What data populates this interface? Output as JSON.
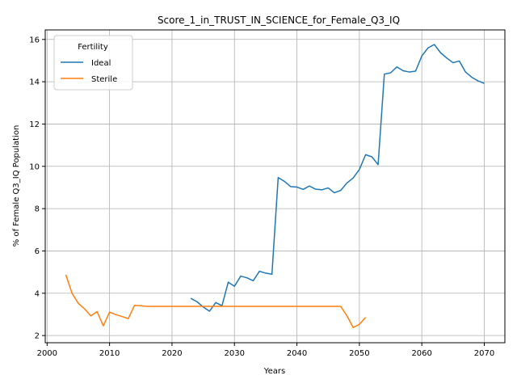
{
  "chart_data": {
    "type": "line",
    "title": "Score_1_in_TRUST_IN_SCIENCE_for_Female_Q3_IQ",
    "xlabel": "Years",
    "ylabel": "% of Female Q3_IQ Population",
    "xlim": [
      1999.7,
      2073.3
    ],
    "ylim": [
      1.66,
      16.45
    ],
    "x_ticks": [
      2000,
      2010,
      2020,
      2030,
      2040,
      2050,
      2060,
      2070
    ],
    "y_ticks": [
      2,
      4,
      6,
      8,
      10,
      12,
      14,
      16
    ],
    "grid": true,
    "legend": {
      "title": "Fertility",
      "placement": "top-left"
    },
    "series": [
      {
        "name": "Ideal",
        "color": "#1f77b4",
        "x": [
          2023,
          2024,
          2025,
          2026,
          2027,
          2028,
          2029,
          2030,
          2031,
          2032,
          2033,
          2034,
          2035,
          2036,
          2037,
          2038,
          2039,
          2040,
          2041,
          2042,
          2043,
          2044,
          2045,
          2046,
          2047,
          2048,
          2049,
          2050,
          2051,
          2052,
          2053,
          2054,
          2055,
          2056,
          2057,
          2058,
          2059,
          2060,
          2061,
          2062,
          2063,
          2064,
          2065,
          2066,
          2067,
          2068,
          2069,
          2070
        ],
        "y": [
          3.76,
          3.6,
          3.35,
          3.15,
          3.56,
          3.41,
          4.52,
          4.33,
          4.81,
          4.73,
          4.59,
          5.04,
          4.95,
          4.9,
          9.47,
          9.29,
          9.04,
          9.02,
          8.91,
          9.07,
          8.92,
          8.89,
          8.98,
          8.75,
          8.86,
          9.21,
          9.45,
          9.85,
          10.55,
          10.45,
          10.08,
          14.36,
          14.42,
          14.7,
          14.52,
          14.46,
          14.5,
          15.22,
          15.6,
          15.76,
          15.37,
          15.12,
          14.9,
          14.98,
          14.46,
          14.21,
          14.04,
          13.92
        ]
      },
      {
        "name": "Sterile",
        "color": "#ff7f0e",
        "x": [
          2003,
          2004,
          2005,
          2006,
          2007,
          2008,
          2009,
          2010,
          2011,
          2012,
          2013,
          2014,
          2015,
          2016,
          2017,
          2018,
          2019,
          2020,
          2021,
          2022,
          2023,
          2024,
          2025,
          2026,
          2027,
          2028,
          2029,
          2030,
          2031,
          2032,
          2033,
          2034,
          2035,
          2036,
          2037,
          2038,
          2039,
          2040,
          2041,
          2042,
          2043,
          2044,
          2045,
          2046,
          2047,
          2048,
          2049,
          2050,
          2051
        ],
        "y": [
          4.87,
          3.99,
          3.52,
          3.26,
          2.93,
          3.13,
          2.46,
          3.11,
          2.99,
          2.9,
          2.8,
          3.43,
          3.41,
          3.38,
          3.38,
          3.38,
          3.38,
          3.38,
          3.38,
          3.38,
          3.38,
          3.38,
          3.38,
          3.38,
          3.38,
          3.38,
          3.38,
          3.38,
          3.38,
          3.38,
          3.38,
          3.38,
          3.38,
          3.38,
          3.38,
          3.38,
          3.38,
          3.38,
          3.38,
          3.38,
          3.38,
          3.38,
          3.38,
          3.38,
          3.38,
          2.94,
          2.38,
          2.53,
          2.86
        ]
      }
    ]
  }
}
